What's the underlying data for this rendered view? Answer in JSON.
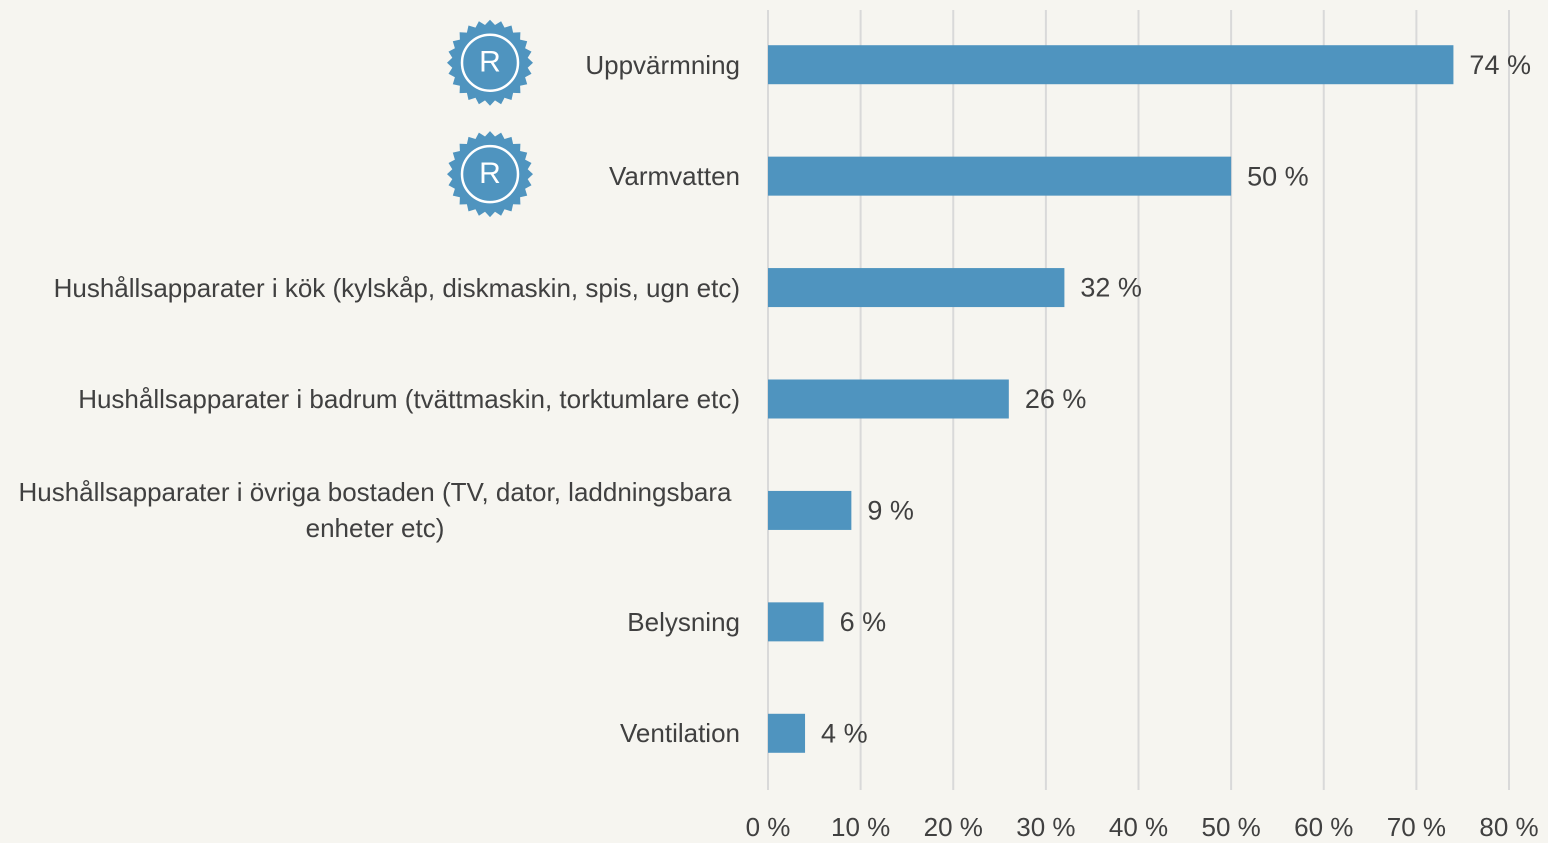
{
  "chart_data": {
    "type": "bar",
    "orientation": "horizontal",
    "categories": [
      "Uppvärmning",
      "Varmvatten",
      "Hushållsapparater i kök (kylskåp, diskmaskin, spis, ugn etc)",
      "Hushållsapparater i badrum (tvättmaskin, torktumlare etc)",
      "Hushållsapparater i övriga bostaden (TV, dator, laddningsbara enheter etc)",
      "Belysning",
      "Ventilation"
    ],
    "values": [
      74,
      50,
      32,
      26,
      9,
      6,
      4
    ],
    "value_labels": [
      "74 %",
      "50 %",
      "32 %",
      "26 %",
      "9 %",
      "6 %",
      "4 %"
    ],
    "color": "#4f94bf",
    "xlim": [
      0,
      80
    ],
    "xticks": [
      {
        "value": 0,
        "label": "0 %"
      },
      {
        "value": 10,
        "label": "10 %"
      },
      {
        "value": 20,
        "label": "20 %"
      },
      {
        "value": 30,
        "label": "30 %"
      },
      {
        "value": 40,
        "label": "40 %"
      },
      {
        "value": 50,
        "label": "50 %"
      },
      {
        "value": 60,
        "label": "60 %"
      },
      {
        "value": 70,
        "label": "70 %"
      },
      {
        "value": 80,
        "label": "80 %"
      }
    ],
    "grid": true,
    "badges": [
      "R",
      "R"
    ]
  }
}
